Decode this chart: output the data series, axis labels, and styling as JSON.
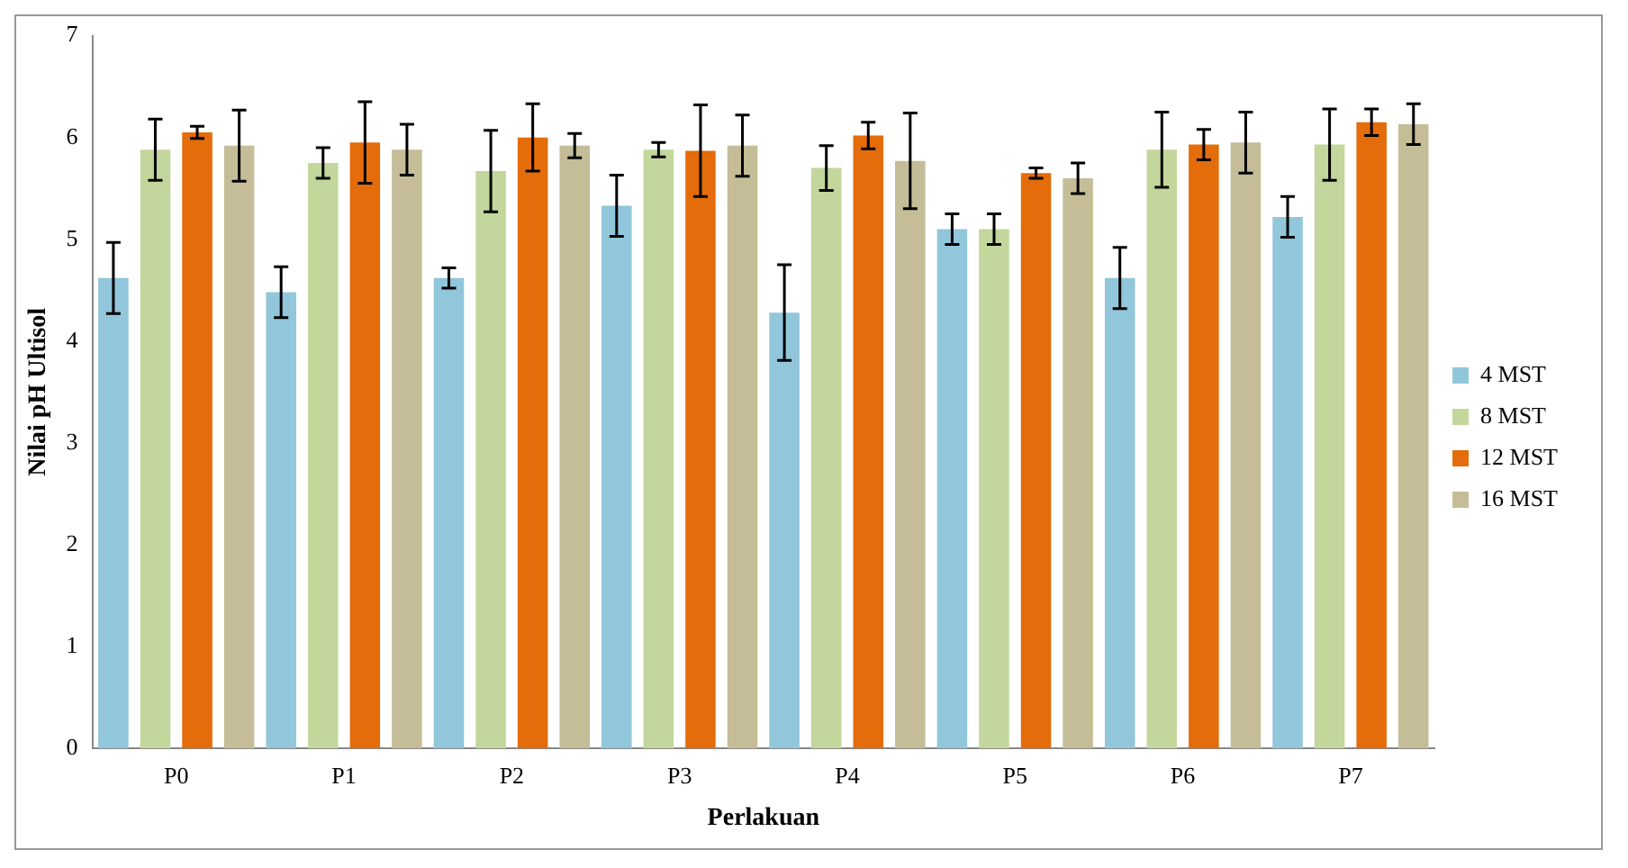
{
  "chart_data": {
    "type": "bar",
    "xlabel": "Perlakuan",
    "ylabel": "Nilai pH Ultisol",
    "categories": [
      "P0",
      "P1",
      "P2",
      "P3",
      "P4",
      "P5",
      "P6",
      "P7"
    ],
    "series": [
      {
        "name": "4 MST",
        "color": "#92c6da",
        "values": [
          4.62,
          4.48,
          4.62,
          5.33,
          4.28,
          5.1,
          4.62,
          5.22
        ],
        "errors": [
          0.35,
          0.25,
          0.1,
          0.3,
          0.47,
          0.15,
          0.3,
          0.2
        ]
      },
      {
        "name": "8 MST",
        "color": "#c3d69b",
        "values": [
          5.88,
          5.75,
          5.67,
          5.88,
          5.7,
          5.1,
          5.88,
          5.93
        ],
        "errors": [
          0.3,
          0.15,
          0.4,
          0.07,
          0.22,
          0.15,
          0.37,
          0.35
        ]
      },
      {
        "name": "12 MST",
        "color": "#e46c0a",
        "values": [
          6.05,
          5.95,
          6.0,
          5.87,
          6.02,
          5.65,
          5.93,
          6.15
        ],
        "errors": [
          0.06,
          0.4,
          0.33,
          0.45,
          0.13,
          0.05,
          0.15,
          0.13
        ]
      },
      {
        "name": "16 MST",
        "color": "#c4bd97",
        "values": [
          5.92,
          5.88,
          5.92,
          5.92,
          5.77,
          5.6,
          5.95,
          6.13
        ],
        "errors": [
          0.35,
          0.25,
          0.12,
          0.3,
          0.47,
          0.15,
          0.3,
          0.2
        ]
      }
    ],
    "ylim": [
      0,
      7
    ],
    "yticks": [
      0,
      1,
      2,
      3,
      4,
      5,
      6,
      7
    ],
    "grid": false,
    "legend": "right"
  }
}
